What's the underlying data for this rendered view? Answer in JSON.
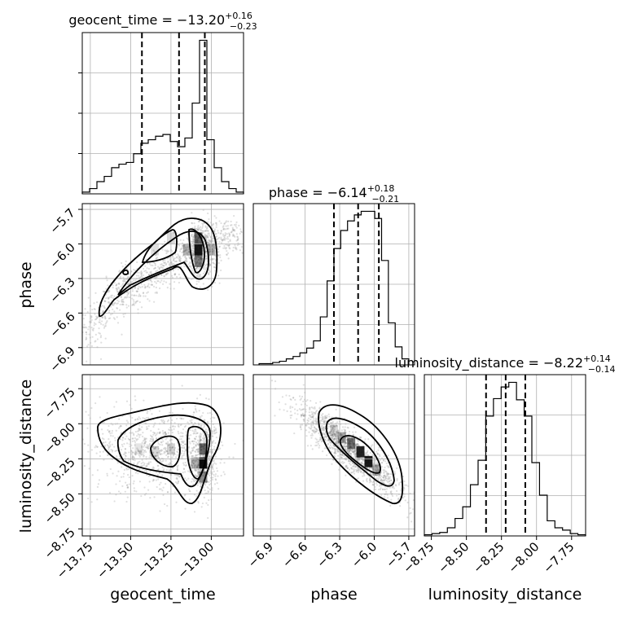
{
  "chart_data": {
    "type": "corner",
    "parameters": [
      "geocent_time",
      "phase",
      "luminosity_distance"
    ],
    "titles": [
      {
        "label": "geocent_time = −13.20",
        "plus": "+0.16",
        "minus": "−0.23"
      },
      {
        "label": "phase = −6.14",
        "plus": "+0.18",
        "minus": "−0.21"
      },
      {
        "label": "luminosity_distance = −8.22",
        "plus": "+0.14",
        "minus": "−0.14"
      }
    ],
    "axis_labels": {
      "x": [
        "geocent_time",
        "phase",
        "luminosity_distance"
      ],
      "y": [
        "phase",
        "luminosity_distance"
      ]
    },
    "ranges": {
      "geocent_time": [
        -13.8,
        -12.8
      ],
      "phase": [
        -7.05,
        -5.65
      ],
      "luminosity_distance": [
        -8.8,
        -7.65
      ]
    },
    "ticks": {
      "geocent_time": [
        "−13.75",
        "−13.50",
        "−13.25",
        "−13.00"
      ],
      "phase": [
        "−6.9",
        "−6.6",
        "−6.3",
        "−6.0",
        "−5.7"
      ],
      "luminosity_distance": [
        "−8.75",
        "−8.50",
        "−8.25",
        "−8.00",
        "−7.75"
      ]
    },
    "tick_values": {
      "geocent_time": [
        -13.75,
        -13.5,
        -13.25,
        -13.0
      ],
      "phase": [
        -6.9,
        -6.6,
        -6.3,
        -6.0,
        -5.7
      ],
      "luminosity_distance": [
        -8.75,
        -8.5,
        -8.25,
        -8.0,
        -7.75
      ]
    },
    "quantiles": {
      "geocent_time": [
        -13.43,
        -13.2,
        -13.04
      ],
      "phase": [
        -6.35,
        -6.14,
        -5.96
      ],
      "luminosity_distance": [
        -8.36,
        -8.22,
        -8.08
      ]
    },
    "histograms": {
      "geocent_time": {
        "range": [
          -13.8,
          -12.8
        ],
        "counts": [
          1,
          3,
          7,
          10,
          15,
          17,
          18,
          23,
          29,
          31,
          33,
          34,
          30,
          27,
          32,
          52,
          88,
          31,
          15,
          7,
          3,
          1
        ]
      },
      "phase": {
        "range": [
          -7.0,
          -5.7
        ],
        "counts": [
          1,
          1,
          2,
          3,
          5,
          7,
          10,
          14,
          20,
          40,
          70,
          97,
          112,
          120,
          125,
          128,
          128,
          122,
          87,
          35,
          15,
          5
        ]
      },
      "luminosity_distance": {
        "range": [
          -8.8,
          -7.65
        ],
        "counts": [
          1,
          2,
          3,
          7,
          15,
          25,
          44,
          65,
          103,
          118,
          128,
          132,
          117,
          103,
          63,
          35,
          13,
          7,
          5,
          2,
          1
        ]
      }
    },
    "grid": true
  }
}
